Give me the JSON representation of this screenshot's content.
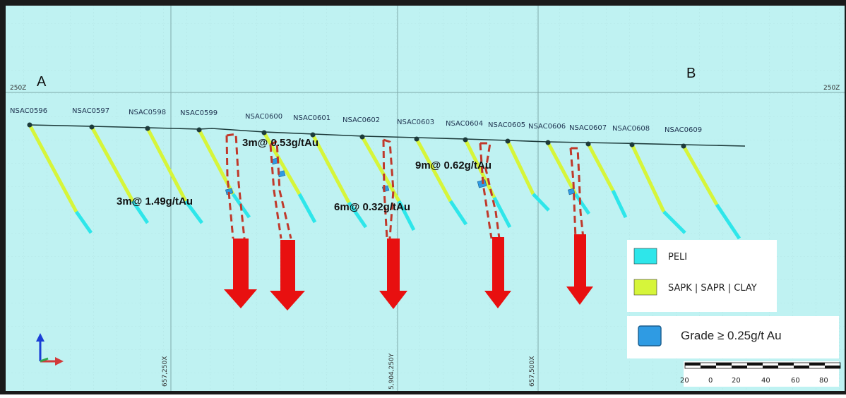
{
  "section": {
    "start_label": "A",
    "end_label": "B",
    "rl_left": "250Z",
    "rl_right": "250Z"
  },
  "coords": {
    "e1": "657,250X",
    "n1": "5,904,250Y",
    "e2": "657,500X"
  },
  "holes": [
    {
      "id": "NSAC0596"
    },
    {
      "id": "NSAC0597"
    },
    {
      "id": "NSAC0598"
    },
    {
      "id": "NSAC0599"
    },
    {
      "id": "NSAC0600"
    },
    {
      "id": "NSAC0601"
    },
    {
      "id": "NSAC0602"
    },
    {
      "id": "NSAC0603"
    },
    {
      "id": "NSAC0604"
    },
    {
      "id": "NSAC0605"
    },
    {
      "id": "NSAC0606"
    },
    {
      "id": "NSAC0607"
    },
    {
      "id": "NSAC0608"
    },
    {
      "id": "NSAC0609"
    }
  ],
  "intercepts": [
    {
      "text": "3m@ 1.49g/tAu"
    },
    {
      "text": "3m@ 0.53g/tAu"
    },
    {
      "text": "6m@ 0.32g/tAu"
    },
    {
      "text": "9m@ 0.62g/tAu"
    }
  ],
  "legend": {
    "peli": "PELI",
    "saprolite": "SAPK | SAPR | CLAY",
    "grade": "Grade ≥ 0.25g/t Au"
  },
  "scale_bar": {
    "ticks": [
      "20",
      "0",
      "20",
      "40",
      "60",
      "80"
    ]
  },
  "colors": {
    "background": "#bff2f2",
    "peli": "#2ee6ea",
    "saprolite": "#d6f53a",
    "grade": "#2f9be3",
    "arrow": "#e81010",
    "envelope": "#c0392b",
    "grid": "#8fbcbc"
  }
}
